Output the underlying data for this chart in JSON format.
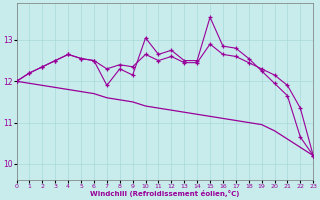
{
  "xlabel": "Windchill (Refroidissement éolien,°C)",
  "background_color": "#c8ecec",
  "line_color": "#990099",
  "xlim": [
    0,
    23
  ],
  "ylim": [
    9.6,
    13.9
  ],
  "yticks": [
    10,
    11,
    12,
    13
  ],
  "xticks": [
    0,
    1,
    2,
    3,
    4,
    5,
    6,
    7,
    8,
    9,
    10,
    11,
    12,
    13,
    14,
    15,
    16,
    17,
    18,
    19,
    20,
    21,
    22,
    23
  ],
  "series1_x": [
    0,
    1,
    2,
    3,
    4,
    5,
    6,
    7,
    8,
    9,
    10,
    11,
    12,
    13,
    14,
    15,
    16,
    17,
    18,
    19,
    20,
    21,
    22,
    23
  ],
  "series1_y": [
    12.0,
    11.95,
    11.9,
    11.85,
    11.8,
    11.75,
    11.7,
    11.6,
    11.55,
    11.5,
    11.4,
    11.35,
    11.3,
    11.25,
    11.2,
    11.15,
    11.1,
    11.05,
    11.0,
    10.95,
    10.8,
    10.6,
    10.4,
    10.2
  ],
  "series2_x": [
    0,
    1,
    2,
    3,
    4,
    5,
    6,
    7,
    8,
    9,
    10,
    11,
    12,
    13,
    14,
    15,
    16,
    17,
    18,
    19,
    20,
    21,
    22,
    23
  ],
  "series2_y": [
    12.0,
    12.2,
    12.35,
    12.5,
    12.65,
    12.55,
    12.5,
    11.9,
    12.3,
    12.15,
    13.05,
    12.65,
    12.75,
    12.5,
    12.5,
    13.55,
    12.85,
    12.8,
    12.55,
    12.25,
    11.95,
    11.65,
    10.65,
    10.2
  ],
  "series3_x": [
    0,
    1,
    2,
    3,
    4,
    5,
    6,
    7,
    8,
    9,
    10,
    11,
    12,
    13,
    14,
    15,
    16,
    17,
    18,
    19,
    20,
    21,
    22,
    23
  ],
  "series3_y": [
    12.0,
    12.2,
    12.35,
    12.5,
    12.65,
    12.55,
    12.5,
    12.3,
    12.4,
    12.35,
    12.65,
    12.5,
    12.6,
    12.45,
    12.45,
    12.9,
    12.65,
    12.6,
    12.45,
    12.3,
    12.15,
    11.9,
    11.35,
    10.2
  ]
}
